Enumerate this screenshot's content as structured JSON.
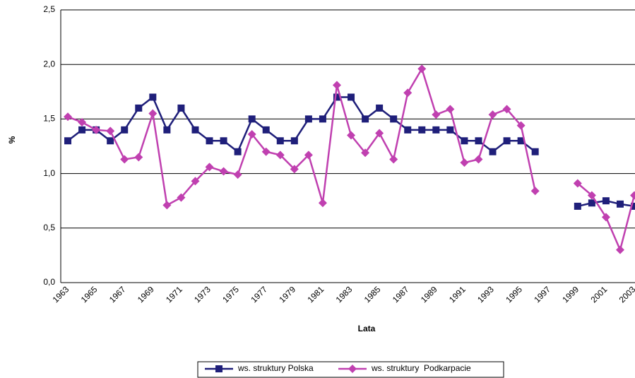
{
  "chart_data": {
    "type": "line",
    "y_label": "%",
    "x_label": "Lata",
    "categories": [
      "1963",
      null,
      "1965",
      null,
      "1967",
      null,
      "1969",
      null,
      "1971",
      null,
      "1973",
      null,
      "1975",
      null,
      "1977",
      null,
      "1979",
      null,
      "1981",
      null,
      "1983",
      null,
      "1985",
      null,
      "1987",
      null,
      "1989",
      null,
      "1991",
      null,
      "1993",
      null,
      "1995",
      null,
      "1997",
      null,
      "1999",
      null,
      "2001",
      null,
      "2003"
    ],
    "series": [
      {
        "name": "ws. struktury Polska",
        "color": "#1f1f7a",
        "marker": "square",
        "values": [
          1.3,
          1.4,
          1.4,
          1.3,
          1.4,
          1.6,
          1.7,
          1.4,
          1.6,
          1.4,
          1.3,
          1.3,
          1.2,
          1.5,
          1.4,
          1.3,
          1.3,
          1.5,
          1.5,
          1.7,
          1.7,
          1.5,
          1.6,
          1.5,
          1.4,
          1.4,
          1.4,
          1.4,
          1.3,
          1.3,
          1.2,
          1.3,
          1.3,
          1.2,
          null,
          null,
          0.7,
          0.73,
          0.75,
          0.72,
          0.7
        ]
      },
      {
        "name": "ws. struktury  Podkarpacie",
        "color": "#c040b0",
        "marker": "diamond",
        "values": [
          1.52,
          1.47,
          1.4,
          1.39,
          1.13,
          1.15,
          1.55,
          0.71,
          0.78,
          0.93,
          1.06,
          1.02,
          0.99,
          1.36,
          1.2,
          1.17,
          1.04,
          1.17,
          0.73,
          1.81,
          1.35,
          1.19,
          1.37,
          1.13,
          1.74,
          1.96,
          1.54,
          1.59,
          1.1,
          1.13,
          1.54,
          1.59,
          1.44,
          0.84,
          null,
          null,
          0.91,
          0.8,
          0.6,
          0.3,
          0.8
        ]
      }
    ],
    "ylim": [
      0,
      2.5
    ],
    "yticks": [
      {
        "value": 0,
        "label": "0,0"
      },
      {
        "value": 0.5,
        "label": "0,5"
      },
      {
        "value": 1,
        "label": "1,0"
      },
      {
        "value": 1.5,
        "label": "1,5"
      },
      {
        "value": 2,
        "label": "2,0"
      },
      {
        "value": 2.5,
        "label": "2,5"
      }
    ],
    "grid": true
  }
}
